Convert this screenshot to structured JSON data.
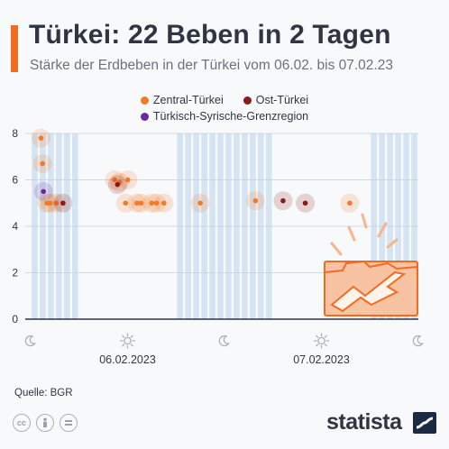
{
  "header": {
    "title": "Türkei: 22 Beben in 2 Tagen",
    "subtitle": "Stärke der Erdbeben in der Türkei vom 06.02. bis 07.02.23"
  },
  "colors": {
    "accent": "#f26b21",
    "zentral": "#f47a2b",
    "ost": "#8b1a1a",
    "grenz": "#6a2aa0",
    "night_band": "#d5e4f2",
    "day_band": "#f8f9fb"
  },
  "chart_data": {
    "type": "scatter",
    "title": "Türkei: 22 Beben in 2 Tagen",
    "subtitle": "Stärke der Erdbeben in der Türkei vom 06.02. bis 07.02.23",
    "xlabel": "",
    "ylabel": "",
    "x_unit": "hour",
    "xlim": [
      "2023-02-06 00:00",
      "2023-02-08 00:00"
    ],
    "ylim": [
      0,
      8
    ],
    "yticks": [
      "0",
      "2",
      "4",
      "6",
      "8"
    ],
    "date_labels": [
      {
        "label": "06.02.2023",
        "x": "2023-02-06 12:00"
      },
      {
        "label": "07.02.2023",
        "x": "2023-02-07 12:00"
      }
    ],
    "axis_icons": [
      {
        "icon": "moon-icon",
        "x": "2023-02-06 00:00"
      },
      {
        "icon": "sun-icon",
        "x": "2023-02-06 12:00"
      },
      {
        "icon": "moon-icon",
        "x": "2023-02-07 00:00"
      },
      {
        "icon": "sun-icon",
        "x": "2023-02-07 12:00"
      },
      {
        "icon": "moon-icon",
        "x": "2023-02-08 00:00"
      }
    ],
    "legend_position": "top",
    "series": [
      {
        "name": "Zentral-Türkei",
        "color": "#f47a2b",
        "points": [
          {
            "x": "2023-02-06 01:17",
            "y": 7.8
          },
          {
            "x": "2023-02-06 01:28",
            "y": 6.7
          },
          {
            "x": "2023-02-06 02:00",
            "y": 5.0
          },
          {
            "x": "2023-02-06 02:25",
            "y": 5.0
          },
          {
            "x": "2023-02-06 03:10",
            "y": 5.0
          },
          {
            "x": "2023-02-06 10:24",
            "y": 6.0
          },
          {
            "x": "2023-02-06 11:00",
            "y": 5.9
          },
          {
            "x": "2023-02-06 12:02",
            "y": 6.0
          },
          {
            "x": "2023-02-06 11:45",
            "y": 5.0
          },
          {
            "x": "2023-02-06 13:10",
            "y": 5.0
          },
          {
            "x": "2023-02-06 13:40",
            "y": 5.0
          },
          {
            "x": "2023-02-06 15:00",
            "y": 5.0
          },
          {
            "x": "2023-02-06 15:35",
            "y": 5.0
          },
          {
            "x": "2023-02-06 16:30",
            "y": 5.0
          },
          {
            "x": "2023-02-06 21:00",
            "y": 5.0
          },
          {
            "x": "2023-02-07 03:50",
            "y": 5.1
          },
          {
            "x": "2023-02-07 15:30",
            "y": 5.0
          }
        ]
      },
      {
        "name": "Ost-Türkei",
        "color": "#8b1a1a",
        "points": [
          {
            "x": "2023-02-06 04:00",
            "y": 5.0
          },
          {
            "x": "2023-02-06 10:45",
            "y": 5.8
          },
          {
            "x": "2023-02-07 07:15",
            "y": 5.1
          },
          {
            "x": "2023-02-07 10:00",
            "y": 5.0
          }
        ]
      },
      {
        "name": "Türkisch-Syrische-Grenzregion",
        "color": "#6a2aa0",
        "points": [
          {
            "x": "2023-02-06 01:35",
            "y": 5.5
          }
        ]
      }
    ]
  },
  "footer": {
    "source": "Quelle: BGR",
    "brand": "statista"
  },
  "cc_icons": [
    "cc-icon",
    "person-icon",
    "equals-icon"
  ]
}
